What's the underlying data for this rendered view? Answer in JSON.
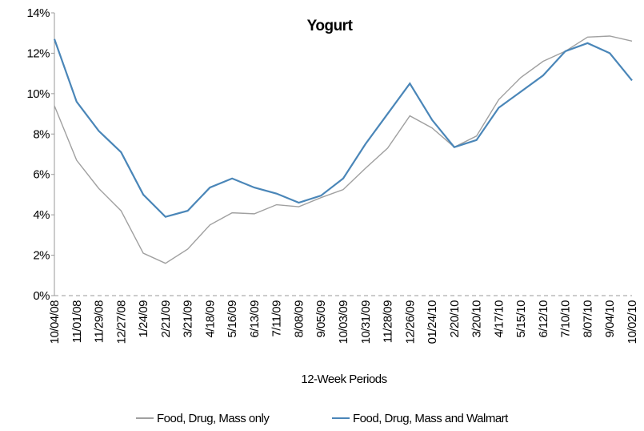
{
  "chart_data": {
    "type": "line",
    "title": "Yogurt",
    "x_label": "12-Week Periods",
    "categories": [
      "10/04/08",
      "11/01/08",
      "11/29/08",
      "12/27/08",
      "1/24/09",
      "2/21/09",
      "3/21/09",
      "4/18/09",
      "5/16/09",
      "6/13/09",
      "7/11/09",
      "8/08/09",
      "9/05/09",
      "10/03/09",
      "10/31/09",
      "11/28/09",
      "12/26/09",
      "01/24/10",
      "2/20/10",
      "3/20/10",
      "4/17/10",
      "5/15/10",
      "6/12/10",
      "7/10/10",
      "8/07/10",
      "9/04/10",
      "10/02/10"
    ],
    "series": [
      {
        "name": "Food, Drug, Mass only",
        "color": "#a0a0a0",
        "values": [
          9.4,
          6.7,
          5.3,
          4.2,
          2.1,
          1.6,
          2.3,
          3.5,
          4.1,
          4.05,
          4.5,
          4.4,
          4.85,
          5.25,
          6.3,
          7.3,
          8.9,
          8.3,
          7.35,
          7.9,
          9.7,
          10.8,
          11.6,
          12.1,
          12.8,
          12.85,
          12.6
        ]
      },
      {
        "name": "Food, Drug, Mass and Walmart",
        "color": "#4a86b8",
        "values": [
          12.7,
          9.6,
          8.15,
          7.1,
          5.0,
          3.9,
          4.2,
          5.35,
          5.8,
          5.35,
          5.05,
          4.6,
          4.95,
          5.8,
          7.5,
          9.0,
          10.5,
          8.7,
          7.35,
          7.7,
          9.3,
          10.1,
          10.9,
          12.1,
          12.5,
          12.0,
          10.65
        ]
      }
    ],
    "ylim": [
      0,
      14
    ],
    "yticks": [
      {
        "value": 0,
        "label": "0%"
      },
      {
        "value": 2,
        "label": "2%"
      },
      {
        "value": 4,
        "label": "4%"
      },
      {
        "value": 6,
        "label": "6%"
      },
      {
        "value": 8,
        "label": "8%"
      },
      {
        "value": 10,
        "label": "10%"
      },
      {
        "value": 12,
        "label": "12%"
      },
      {
        "value": 14,
        "label": "14%"
      }
    ],
    "legend": "bottom"
  }
}
